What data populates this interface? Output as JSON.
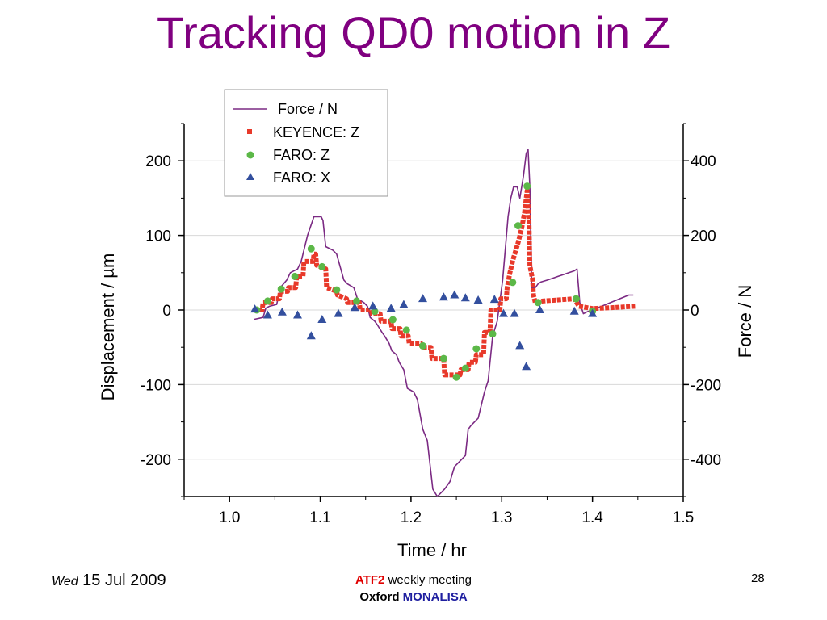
{
  "slide": {
    "title": "Tracking QD0 motion in Z",
    "footer": {
      "weekday": "Wed",
      "date": "15 Jul 2009",
      "meeting_tag": "ATF2",
      "meeting_rest": " weekly meeting",
      "org": "Oxford",
      "org_project": "MONALISA",
      "page_number": "28"
    }
  },
  "chart_data": {
    "type": "line",
    "xlabel": "Time / hr",
    "ylabel_left": "Displacement / µm",
    "ylabel_right": "Force / N",
    "xlim": [
      0.95,
      1.5
    ],
    "ylim_left": [
      -250,
      250
    ],
    "ylim_right": [
      -500,
      500
    ],
    "x_ticks": [
      1.0,
      1.1,
      1.2,
      1.3,
      1.4,
      1.5
    ],
    "x_tick_labels": [
      "1.0",
      "1.1",
      "1.2",
      "1.3",
      "1.4",
      "1.5"
    ],
    "y_left_ticks": [
      200,
      100,
      0,
      -100,
      -200
    ],
    "y_left_tick_labels": [
      "200",
      "100",
      "0",
      "-100",
      "-200"
    ],
    "y_right_ticks": [
      400,
      200,
      0,
      -200,
      -400
    ],
    "y_right_tick_labels": [
      "400",
      "200",
      "0",
      "-200",
      "-400"
    ],
    "grid": true,
    "legend_position": "top-left",
    "colors": {
      "force": "#7b2a83",
      "keyence": "#e8392a",
      "faro_z": "#5cb848",
      "faro_x": "#334f9e"
    },
    "series": [
      {
        "name": "Force / N",
        "style": "line",
        "axis": "right",
        "x": [
          1.027,
          1.037,
          1.04,
          1.044,
          1.052,
          1.056,
          1.063,
          1.067,
          1.075,
          1.079,
          1.086,
          1.093,
          1.097,
          1.101,
          1.103,
          1.106,
          1.114,
          1.118,
          1.126,
          1.13,
          1.137,
          1.141,
          1.148,
          1.152,
          1.155,
          1.16,
          1.163,
          1.168,
          1.171,
          1.176,
          1.179,
          1.184,
          1.187,
          1.192,
          1.196,
          1.203,
          1.207,
          1.213,
          1.218,
          1.224,
          1.229,
          1.233,
          1.237,
          1.24,
          1.243,
          1.248,
          1.252,
          1.256,
          1.26,
          1.263,
          1.266,
          1.27,
          1.274,
          1.281,
          1.285,
          1.29,
          1.295,
          1.301,
          1.307,
          1.31,
          1.313,
          1.317,
          1.32,
          1.324,
          1.327,
          1.329,
          1.331,
          1.333,
          1.337,
          1.34,
          1.343,
          1.35,
          1.356,
          1.362,
          1.368,
          1.374,
          1.38,
          1.383,
          1.386,
          1.39,
          1.394,
          1.4,
          1.41,
          1.42,
          1.43,
          1.44,
          1.445
        ],
        "y": [
          -25,
          -20,
          5,
          10,
          15,
          60,
          80,
          100,
          110,
          130,
          200,
          250,
          250,
          250,
          240,
          170,
          160,
          150,
          80,
          70,
          60,
          30,
          20,
          10,
          -20,
          -30,
          -40,
          -60,
          -70,
          -90,
          -110,
          -120,
          -140,
          -160,
          -210,
          -220,
          -240,
          -320,
          -350,
          -480,
          -500,
          -490,
          -480,
          -470,
          -460,
          -420,
          -410,
          -400,
          -390,
          -320,
          -310,
          -300,
          -290,
          -220,
          -190,
          -70,
          -30,
          80,
          250,
          300,
          330,
          330,
          300,
          360,
          420,
          430,
          330,
          60,
          60,
          70,
          75,
          80,
          85,
          90,
          95,
          100,
          105,
          110,
          20,
          -10,
          -5,
          0,
          10,
          20,
          30,
          40,
          40
        ]
      },
      {
        "name": "KEYENCE: Z",
        "style": "thick-dotted-line",
        "axis": "left",
        "x": [
          1.027,
          1.036,
          1.037,
          1.046,
          1.047,
          1.055,
          1.056,
          1.064,
          1.065,
          1.073,
          1.074,
          1.081,
          1.082,
          1.092,
          1.093,
          1.095,
          1.096,
          1.106,
          1.107,
          1.118,
          1.119,
          1.129,
          1.13,
          1.143,
          1.144,
          1.156,
          1.157,
          1.166,
          1.167,
          1.178,
          1.179,
          1.188,
          1.189,
          1.197,
          1.198,
          1.211,
          1.212,
          1.222,
          1.223,
          1.236,
          1.237,
          1.254,
          1.255,
          1.263,
          1.264,
          1.271,
          1.272,
          1.28,
          1.281,
          1.287,
          1.288,
          1.298,
          1.299,
          1.305,
          1.306,
          1.309,
          1.313,
          1.318,
          1.322,
          1.325,
          1.328,
          1.33,
          1.331,
          1.334,
          1.335,
          1.337,
          1.345,
          1.38,
          1.385,
          1.4,
          1.42,
          1.447
        ],
        "y": [
          0,
          0,
          10,
          10,
          15,
          15,
          25,
          25,
          30,
          30,
          45,
          45,
          65,
          65,
          75,
          75,
          60,
          55,
          30,
          25,
          20,
          15,
          10,
          10,
          0,
          0,
          -5,
          -5,
          -15,
          -15,
          -25,
          -25,
          -35,
          -35,
          -45,
          -45,
          -50,
          -50,
          -65,
          -65,
          -87,
          -87,
          -80,
          -80,
          -70,
          -70,
          -60,
          -60,
          -30,
          -30,
          0,
          0,
          15,
          15,
          30,
          50,
          70,
          90,
          110,
          130,
          160,
          120,
          60,
          40,
          20,
          10,
          12,
          15,
          5,
          2,
          3,
          5
        ]
      },
      {
        "name": "FARO: Z",
        "style": "circle",
        "axis": "left",
        "x": [
          1.03,
          1.042,
          1.057,
          1.072,
          1.09,
          1.102,
          1.118,
          1.14,
          1.16,
          1.18,
          1.195,
          1.213,
          1.236,
          1.25,
          1.26,
          1.272,
          1.29,
          1.312,
          1.318,
          1.328,
          1.34,
          1.382,
          1.4
        ],
        "y": [
          0,
          12,
          28,
          45,
          82,
          58,
          27,
          12,
          -2,
          -13,
          -27,
          -48,
          -65,
          -90,
          -78,
          -52,
          -32,
          37,
          113,
          166,
          10,
          15,
          -2
        ]
      },
      {
        "name": "FARO: X",
        "style": "triangle",
        "axis": "left",
        "x": [
          1.028,
          1.042,
          1.058,
          1.075,
          1.09,
          1.102,
          1.12,
          1.138,
          1.158,
          1.178,
          1.192,
          1.213,
          1.236,
          1.248,
          1.26,
          1.274,
          1.292,
          1.302,
          1.314,
          1.32,
          1.327,
          1.342,
          1.38,
          1.4
        ],
        "y": [
          1,
          -7,
          -3,
          -7,
          -35,
          -13,
          -5,
          3,
          5,
          2,
          7,
          15,
          17,
          20,
          16,
          13,
          14,
          -5,
          -5,
          -48,
          -76,
          0,
          -2,
          -5
        ]
      }
    ]
  }
}
